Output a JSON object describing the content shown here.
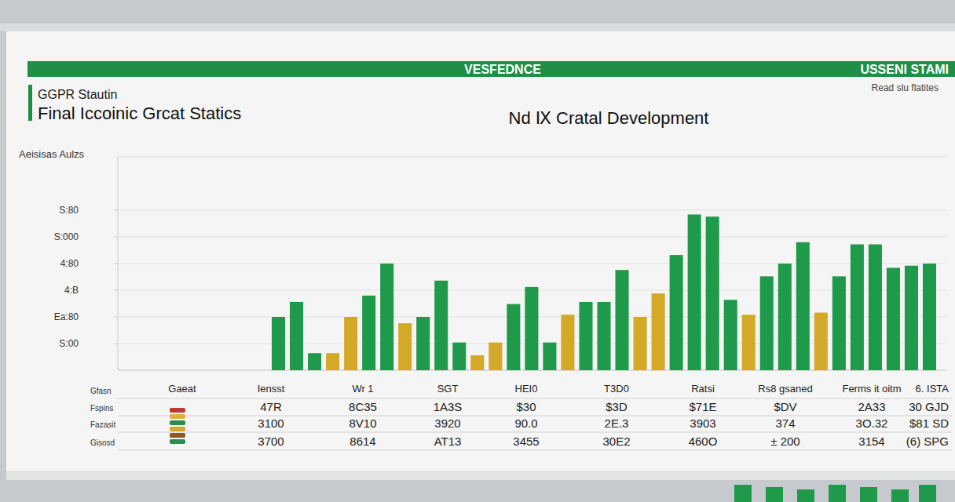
{
  "header": {
    "band_left": "VESFEDNCE",
    "band_right": "USSENI STAMI",
    "note": "Read slu flatites",
    "kicker": "GGPR Stautin",
    "title": "Final Iccoinic Grcat Statics"
  },
  "chart_data": {
    "type": "bar",
    "title": "Nd Ⅸ Cratal Development",
    "y_label": "Aeisisas Aulzs",
    "categories": [
      null,
      null,
      null,
      null,
      null,
      null,
      null,
      null,
      null,
      null,
      null,
      null,
      null,
      null,
      null,
      null,
      null,
      null,
      null,
      null,
      null,
      null,
      null,
      null,
      null,
      null,
      null,
      null,
      null,
      null,
      null,
      null,
      null,
      null,
      null,
      null,
      null
    ],
    "values": [
      25,
      32,
      8,
      8,
      25,
      35,
      50,
      22,
      25,
      42,
      13,
      7,
      13,
      31,
      39,
      13,
      26,
      32,
      32,
      47,
      25,
      36,
      54,
      73,
      72,
      33,
      26,
      44,
      50,
      60,
      27,
      44,
      59,
      59,
      48,
      49,
      50
    ],
    "colors": [
      "#1f9a4a",
      "#1f9a4a",
      "#1f9a4a",
      "#d4a92a",
      "#d4a92a",
      "#1f9a4a",
      "#1f9a4a",
      "#d4a92a",
      "#1f9a4a",
      "#1f9a4a",
      "#1f9a4a",
      "#d4a92a",
      "#d4a92a",
      "#1f9a4a",
      "#1f9a4a",
      "#1f9a4a",
      "#d4a92a",
      "#1f9a4a",
      "#1f9a4a",
      "#1f9a4a",
      "#d4a92a",
      "#d4a92a",
      "#1f9a4a",
      "#1f9a4a",
      "#1f9a4a",
      "#1f9a4a",
      "#d4a92a",
      "#1f9a4a",
      "#1f9a4a",
      "#1f9a4a",
      "#d4a92a",
      "#1f9a4a",
      "#1f9a4a",
      "#1f9a4a",
      "#1f9a4a",
      "#1f9a4a",
      "#1f9a4a"
    ],
    "ylim": [
      0,
      100
    ],
    "yticks": [
      {
        "value": 12.5,
        "label": "S:00"
      },
      {
        "value": 25,
        "label": "Ea:80"
      },
      {
        "value": 37.5,
        "label": "4:B"
      },
      {
        "value": 50,
        "label": "4:80"
      },
      {
        "value": 62.5,
        "label": "S:000"
      },
      {
        "value": 75,
        "label": "S:80"
      }
    ],
    "grid": true
  },
  "table": {
    "corner": "Gfasn",
    "columns": [
      "Gaeat",
      "Iensst",
      "Wr 1",
      "SGT",
      "HEI0",
      "T3D0",
      "Ratsi",
      "Rs8 gsaned",
      "Ferms it oitm",
      "6. ISTA"
    ],
    "rows": [
      [
        "Fspins",
        "47R",
        "8C35",
        "1A3S",
        "$30",
        "$3D",
        "$71E",
        "$DV",
        "2A33",
        "30 GJD"
      ],
      [
        "Fazasit",
        "3100",
        "8V10",
        "3920",
        "90.0",
        "2E.3",
        "3903",
        "374",
        "3O.32",
        "$81 SD"
      ],
      [
        "Gisosd",
        "3700",
        "8614",
        "AT13",
        "3455",
        "30E2",
        "460O",
        "± 200",
        "3154",
        "(6) SPG"
      ]
    ]
  }
}
